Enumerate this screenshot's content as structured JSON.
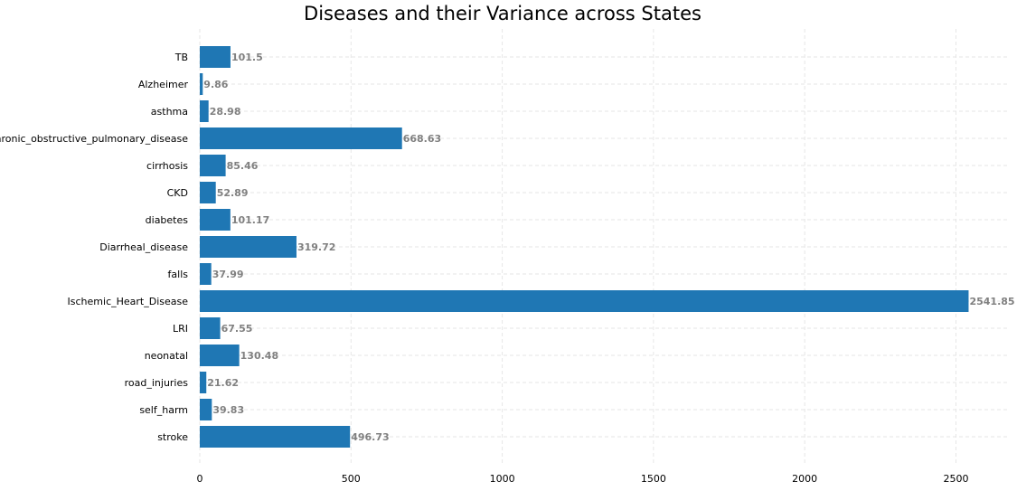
{
  "chart_data": {
    "type": "bar",
    "orientation": "horizontal",
    "title": "Diseases and their Variance across States",
    "xlabel": "",
    "ylabel": "",
    "categories": [
      "TB",
      "Alzheimer",
      "asthma",
      "Chronic_obstructive_pulmonary_disease",
      "cirrhosis",
      "CKD",
      "diabetes",
      "Diarrheal_disease",
      "falls",
      "Ischemic_Heart_Disease",
      "LRI",
      "neonatal",
      "road_injuries",
      "self_harm",
      "stroke"
    ],
    "values": [
      101.5,
      9.86,
      28.98,
      668.63,
      85.46,
      52.89,
      101.17,
      319.72,
      37.99,
      2541.85,
      67.55,
      130.48,
      21.62,
      39.83,
      496.73
    ],
    "data_labels": [
      "101.5",
      "9.86",
      "28.98",
      "668.63",
      "85.46",
      "52.89",
      "101.17",
      "319.72",
      "37.99",
      "2541.85",
      "67.55",
      "130.48",
      "21.62",
      "39.83",
      "496.73"
    ],
    "xticks": [
      0,
      500,
      1000,
      1500,
      2000,
      2500
    ],
    "xlim": [
      0,
      2669
    ],
    "grid": true,
    "bar_color": "#1f77b4",
    "label_color": "#808080"
  }
}
